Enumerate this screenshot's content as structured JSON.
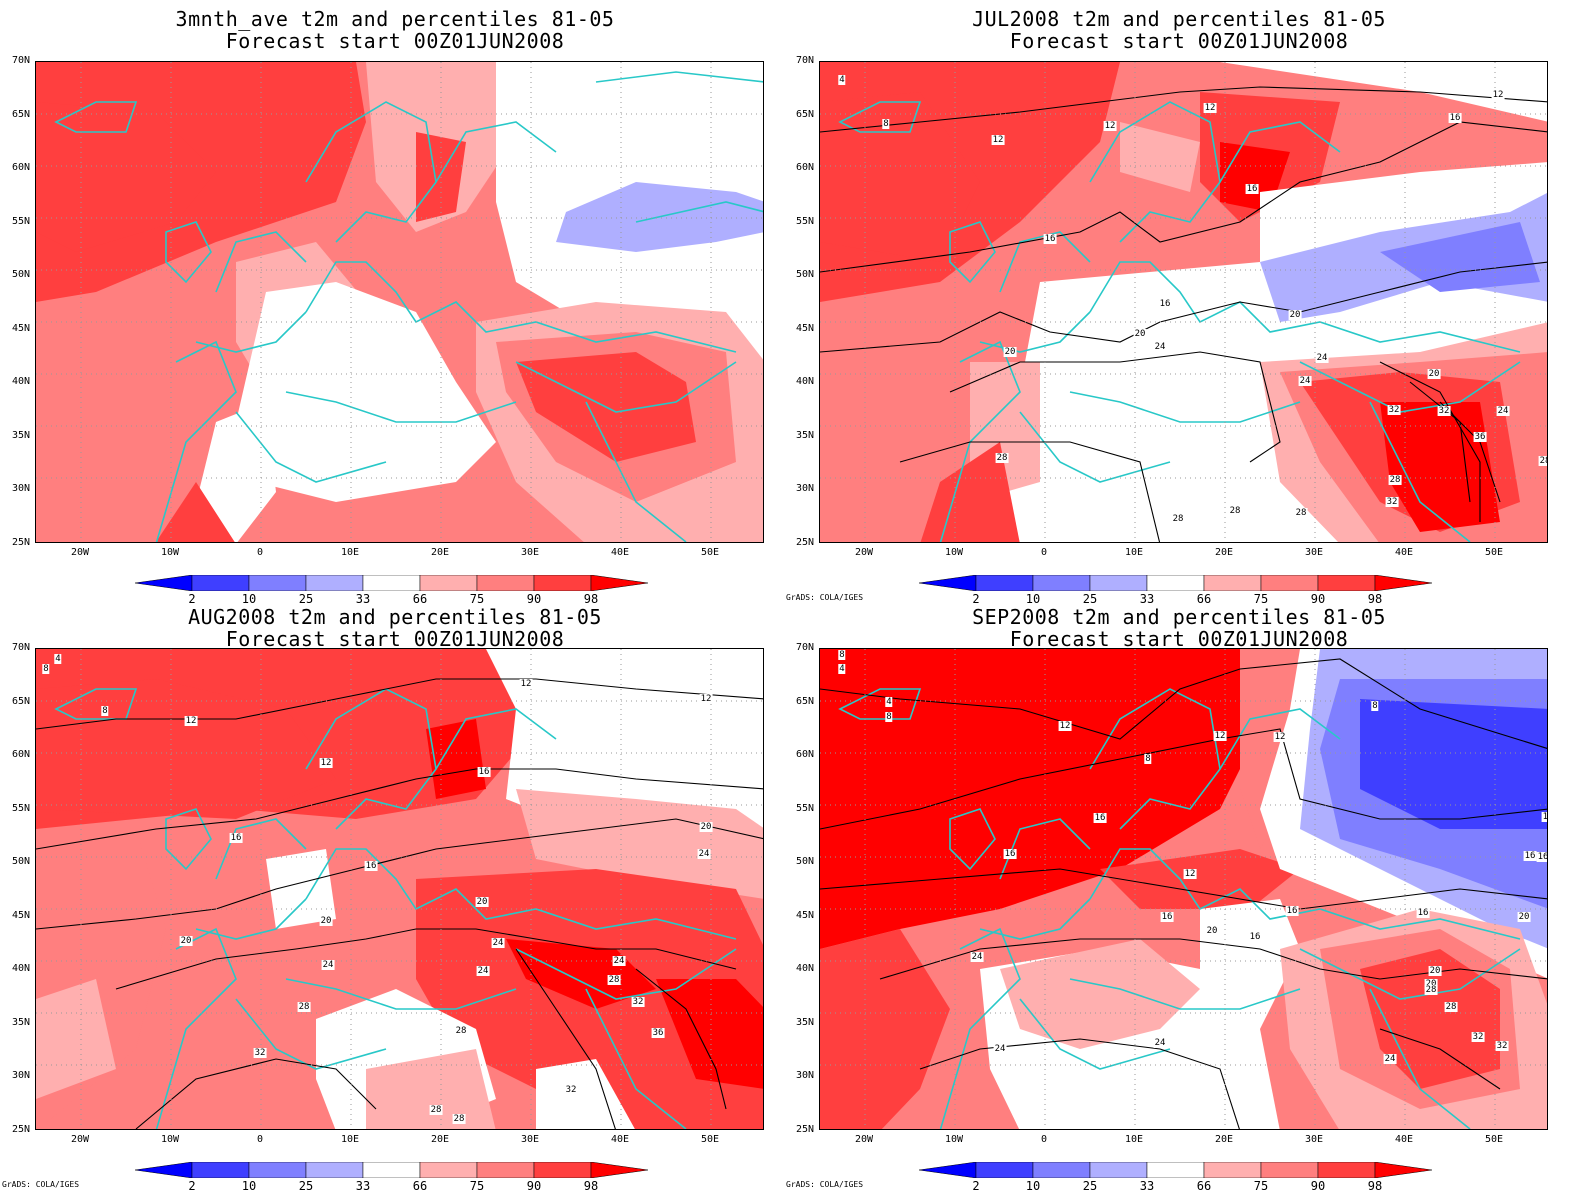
{
  "panels": [
    {
      "id": "p1",
      "title_line1": "3mnth_ave t2m and percentiles 81-05",
      "title_line2": "Forecast start 00Z01JUN2008",
      "credit": "",
      "contour_labels": []
    },
    {
      "id": "p2",
      "title_line1": "JUL2008 t2m and percentiles 81-05",
      "title_line2": "Forecast start 00Z01JUN2008",
      "credit": "GrADS: COLA/IGES",
      "contour_labels": [
        "4",
        "8",
        "12",
        "12",
        "12",
        "16",
        "16",
        "16",
        "16",
        "20",
        "20",
        "20",
        "20",
        "24",
        "24",
        "24",
        "24",
        "32",
        "32",
        "36",
        "28",
        "28",
        "28",
        "28",
        "28",
        "28",
        "12",
        "32"
      ]
    },
    {
      "id": "p3",
      "title_line1": "AUG2008 t2m and percentiles 81-05",
      "title_line2": "Forecast start 00Z01JUN2008",
      "credit": "GrADS: COLA/IGES",
      "contour_labels": [
        "4",
        "8",
        "8",
        "12",
        "12",
        "12",
        "12",
        "16",
        "16",
        "16",
        "20",
        "20",
        "20",
        "20",
        "24",
        "24",
        "24",
        "24",
        "24",
        "28",
        "28",
        "28",
        "28",
        "28",
        "32",
        "32",
        "36",
        "32"
      ]
    },
    {
      "id": "p4",
      "title_line1": "SEP2008 t2m and percentiles 81-05",
      "title_line2": "Forecast start 00Z01JUN2008",
      "credit": "GrADS: COLA/IGES",
      "contour_labels": [
        "8",
        "4",
        "4",
        "8",
        "8",
        "12",
        "12",
        "12",
        "8",
        "16",
        "16",
        "16",
        "12",
        "16",
        "16",
        "16",
        "20",
        "20",
        "20",
        "24",
        "24",
        "24",
        "28",
        "28",
        "32",
        "32",
        "24",
        "24",
        "12",
        "16",
        "20",
        "16"
      ]
    }
  ],
  "axis": {
    "lat_labels": [
      "70N",
      "65N",
      "60N",
      "55N",
      "50N",
      "45N",
      "40N",
      "35N",
      "30N",
      "25N"
    ],
    "lon_labels": [
      "20W",
      "10W",
      "0",
      "10E",
      "20E",
      "30E",
      "40E",
      "50E"
    ]
  },
  "colorbar": {
    "labels": [
      "2",
      "10",
      "25",
      "33",
      "66",
      "75",
      "90",
      "98"
    ],
    "colors": [
      "#0000ff",
      "#3f3fff",
      "#7f7fff",
      "#afafff",
      "#ffffff",
      "#ffafaf",
      "#ff7f7f",
      "#ff3f3f",
      "#ff0000"
    ]
  },
  "colors": {
    "coast": "#28c8c8",
    "contour": "#000000"
  }
}
